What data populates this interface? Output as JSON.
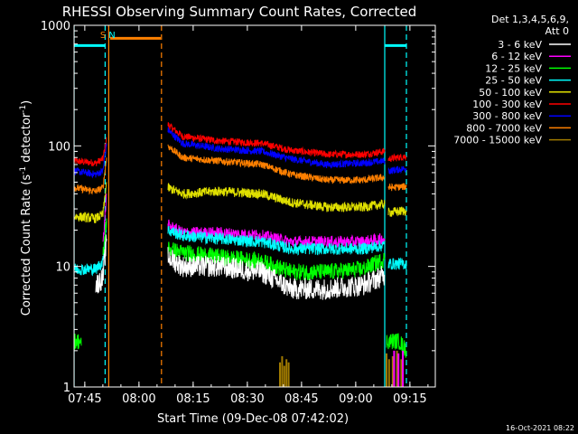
{
  "chart_data": {
    "type": "line",
    "title": "RHESSI Observing Summary Count Rates, Corrected",
    "xlabel": "Start Time (09-Dec-08 07:42:02)",
    "ylabel_parts": [
      "Corrected Count Rate (s",
      "-1",
      " detector",
      "-1",
      ")"
    ],
    "y_scale": "log",
    "ylim": [
      1,
      1000
    ],
    "xlim_minutes": [
      0,
      100
    ],
    "x_ticks": [
      {
        "label": "07:45",
        "min": 2.97
      },
      {
        "label": "08:00",
        "min": 17.97
      },
      {
        "label": "08:15",
        "min": 32.97
      },
      {
        "label": "08:30",
        "min": 47.97
      },
      {
        "label": "08:45",
        "min": 62.97
      },
      {
        "label": "09:00",
        "min": 77.97
      },
      {
        "label": "09:15",
        "min": 92.97
      }
    ],
    "y_ticks": [
      {
        "label": "1",
        "value": 1
      },
      {
        "label": "10",
        "value": 10
      },
      {
        "label": "100",
        "value": 100
      },
      {
        "label": "1000",
        "value": 1000
      }
    ],
    "legend_header": [
      "Det 1,3,4,5,6,9,",
      "Att 0"
    ],
    "series": [
      {
        "name": "3 - 6 keV",
        "color": "#ffffff"
      },
      {
        "name": "6 - 12 keV",
        "color": "#ff00ff"
      },
      {
        "name": "12 - 25 keV",
        "color": "#00ff00"
      },
      {
        "name": "25 - 50 keV",
        "color": "#00ffff"
      },
      {
        "name": "50 - 100 keV",
        "color": "#e0e000"
      },
      {
        "name": "100 - 300 keV",
        "color": "#ff0000"
      },
      {
        "name": "300 - 800 keV",
        "color": "#0000ff"
      },
      {
        "name": "800 - 7000 keV",
        "color": "#ff8000"
      },
      {
        "name": "7000 - 15000 keV",
        "color": "#a07a00"
      }
    ],
    "plot_series": [
      {
        "name": "100 - 300 keV",
        "color": "#ff0000",
        "noise": 0.03,
        "segments": [
          [
            [
              0,
              75
            ],
            [
              6,
              72
            ],
            [
              8,
              78
            ],
            [
              9,
              115
            ]
          ],
          [
            [
              26,
              150
            ],
            [
              30,
              120
            ],
            [
              40,
              110
            ],
            [
              52,
              105
            ],
            [
              60,
              92
            ],
            [
              70,
              85
            ],
            [
              80,
              85
            ],
            [
              86,
              90
            ]
          ],
          [
            [
              87,
              78
            ],
            [
              92,
              82
            ]
          ]
        ]
      },
      {
        "name": "300 - 800 keV",
        "color": "#0000ff",
        "noise": 0.03,
        "segments": [
          [
            [
              0,
              62
            ],
            [
              6,
              58
            ],
            [
              8,
              62
            ],
            [
              9,
              105
            ]
          ],
          [
            [
              26,
              135
            ],
            [
              30,
              105
            ],
            [
              40,
              95
            ],
            [
              52,
              90
            ],
            [
              60,
              78
            ],
            [
              70,
              70
            ],
            [
              80,
              72
            ],
            [
              86,
              75
            ]
          ],
          [
            [
              87,
              62
            ],
            [
              92,
              65
            ]
          ]
        ]
      },
      {
        "name": "800 - 7000 keV",
        "color": "#ff8000",
        "noise": 0.03,
        "segments": [
          [
            [
              0,
              45
            ],
            [
              6,
              42
            ],
            [
              8,
              45
            ],
            [
              9,
              80
            ]
          ],
          [
            [
              26,
              100
            ],
            [
              30,
              80
            ],
            [
              40,
              75
            ],
            [
              52,
              70
            ],
            [
              60,
              58
            ],
            [
              70,
              52
            ],
            [
              80,
              52
            ],
            [
              86,
              55
            ]
          ],
          [
            [
              87,
              45
            ],
            [
              92,
              46
            ]
          ]
        ]
      },
      {
        "name": "50 - 100 keV",
        "color": "#e0e000",
        "noise": 0.04,
        "segments": [
          [
            [
              0,
              26
            ],
            [
              6,
              25
            ],
            [
              8,
              27
            ],
            [
              9,
              50
            ]
          ],
          [
            [
              26,
              45
            ],
            [
              30,
              40
            ],
            [
              40,
              42
            ],
            [
              52,
              40
            ],
            [
              60,
              34
            ],
            [
              70,
              31
            ],
            [
              80,
              31
            ],
            [
              86,
              33
            ]
          ],
          [
            [
              87,
              28
            ],
            [
              92,
              29
            ]
          ]
        ]
      },
      {
        "name": "6 - 12 keV",
        "color": "#ff00ff",
        "noise": 0.05,
        "segments": [
          [
            [
              8,
              15
            ],
            [
              9,
              40
            ]
          ],
          [
            [
              26,
              22
            ],
            [
              30,
              19
            ],
            [
              40,
              19
            ],
            [
              52,
              18
            ],
            [
              60,
              16
            ],
            [
              70,
              16
            ],
            [
              80,
              16
            ],
            [
              86,
              17
            ]
          ]
        ]
      },
      {
        "name": "25 - 50 keV",
        "color": "#00ffff",
        "noise": 0.05,
        "segments": [
          [
            [
              0,
              9.5
            ],
            [
              6,
              9.5
            ],
            [
              8,
              11
            ],
            [
              9,
              24
            ]
          ],
          [
            [
              26,
              20
            ],
            [
              30,
              18
            ],
            [
              40,
              17
            ],
            [
              52,
              16
            ],
            [
              60,
              14
            ],
            [
              70,
              14
            ],
            [
              80,
              14
            ],
            [
              86,
              15
            ]
          ],
          [
            [
              87,
              10.5
            ],
            [
              92,
              10.5
            ]
          ]
        ]
      },
      {
        "name": "12 - 25 keV",
        "color": "#00ff00",
        "noise": 0.07,
        "segments": [
          [
            [
              0,
              2.4
            ],
            [
              1.5,
              2.4
            ],
            [
              2,
              2.2
            ]
          ],
          [
            [
              8,
              12
            ],
            [
              9,
              25
            ]
          ],
          [
            [
              26,
              14
            ],
            [
              30,
              13
            ],
            [
              40,
              12
            ],
            [
              52,
              11
            ],
            [
              60,
              9
            ],
            [
              70,
              9
            ],
            [
              80,
              9.5
            ],
            [
              86,
              11.5
            ]
          ],
          [
            [
              86.5,
              2.4
            ],
            [
              90,
              2.4
            ],
            [
              92,
              2.0
            ]
          ]
        ]
      },
      {
        "name": "3 - 6 keV",
        "color": "#ffffff",
        "noise": 0.09,
        "segments": [
          [
            [
              6,
              7
            ],
            [
              8,
              8
            ],
            [
              9,
              17
            ]
          ],
          [
            [
              26,
              12
            ],
            [
              30,
              10
            ],
            [
              40,
              10
            ],
            [
              52,
              9
            ],
            [
              60,
              6.5
            ],
            [
              70,
              6.5
            ],
            [
              80,
              7
            ],
            [
              86,
              8.5
            ]
          ]
        ]
      }
    ],
    "y_ref_lines": [
      {
        "color": "#00ffff",
        "value": 680,
        "segments": [
          [
            0,
            8.6
          ],
          [
            86,
            92
          ]
        ]
      },
      {
        "color": "#ff8000",
        "value": 780,
        "segments": [
          [
            10,
            24
          ]
        ]
      }
    ],
    "vlines": [
      {
        "color": "#00ffff",
        "style": "solid",
        "min": 0
      },
      {
        "color": "#00ffff",
        "style": "dashed",
        "min": 8.6
      },
      {
        "color": "#ff8000",
        "style": "solid",
        "min": 9.6
      },
      {
        "color": "#ff8000",
        "style": "dashed",
        "min": 24.2
      },
      {
        "color": "#00ffff",
        "style": "solid",
        "min": 86
      },
      {
        "color": "#00ffff",
        "style": "dashed",
        "min": 92
      }
    ],
    "markers": [
      {
        "label": "S",
        "color": "#ff8000",
        "min": 8.0
      },
      {
        "label": "N",
        "color": "#00ffff",
        "min": 10.5
      }
    ],
    "timestamp": "16-Oct-2021 08:22"
  }
}
